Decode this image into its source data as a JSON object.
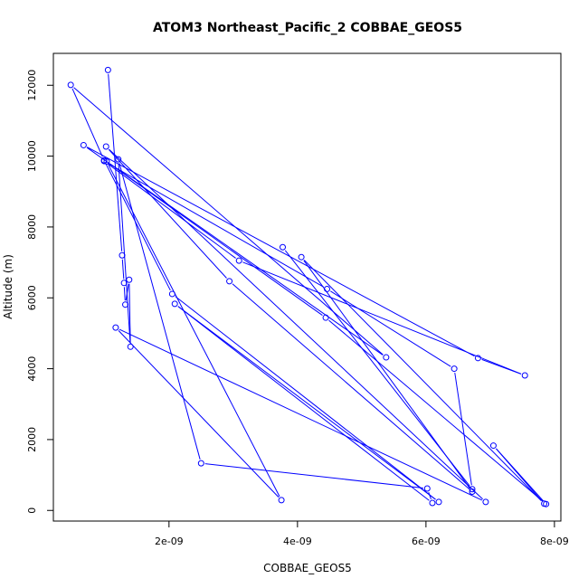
{
  "chart_data": {
    "type": "scatter",
    "title": "ATOM3 Northeast_Pacific_2 COBBAE_GEOS5",
    "xlabel": "COBBAE_GEOS5",
    "ylabel": "Altitude (m)",
    "xlim": [
      2e-10,
      8.1e-09
    ],
    "ylim": [
      -300,
      12900
    ],
    "x_ticks": [
      2e-09,
      4e-09,
      6e-09,
      8e-09
    ],
    "x_tick_labels": [
      "2e-09",
      "4e-09",
      "6e-09",
      "8e-09"
    ],
    "y_ticks": [
      0,
      2000,
      4000,
      6000,
      8000,
      10000,
      12000
    ],
    "y_tick_labels": [
      "0",
      "2000",
      "4000",
      "6000",
      "8000",
      "10000",
      "12000"
    ],
    "grid": false,
    "connected": true,
    "marker": "open-circle",
    "color": "#0000ff",
    "series": [
      {
        "points": [
          {
            "x": 1.05e-09,
            "y": 12430
          },
          {
            "x": 1.27e-09,
            "y": 7200
          },
          {
            "x": 1.3e-09,
            "y": 6420
          },
          {
            "x": 1.32e-09,
            "y": 5810
          },
          {
            "x": 1.38e-09,
            "y": 6510
          },
          {
            "x": 1.4e-09,
            "y": 4620
          },
          {
            "x": 1.21e-09,
            "y": 9910
          },
          {
            "x": 2.5e-09,
            "y": 1330
          },
          {
            "x": 6.02e-09,
            "y": 620
          },
          {
            "x": 6.1e-09,
            "y": 210
          },
          {
            "x": 2.09e-09,
            "y": 5830
          },
          {
            "x": 6.2e-09,
            "y": 240
          },
          {
            "x": 2.05e-09,
            "y": 6110
          },
          {
            "x": 9.9e-10,
            "y": 9880
          },
          {
            "x": 4.7e-10,
            "y": 12010
          },
          {
            "x": 5.38e-09,
            "y": 4320
          },
          {
            "x": 1.03e-09,
            "y": 9850
          },
          {
            "x": 3.75e-09,
            "y": 290
          },
          {
            "x": 1.17e-09,
            "y": 5160
          },
          {
            "x": 6.93e-09,
            "y": 240
          },
          {
            "x": 1.02e-09,
            "y": 10270
          },
          {
            "x": 2.94e-09,
            "y": 6470
          },
          {
            "x": 6.72e-09,
            "y": 530
          },
          {
            "x": 4.06e-09,
            "y": 7150
          },
          {
            "x": 7.84e-09,
            "y": 190
          },
          {
            "x": 7.05e-09,
            "y": 1830
          },
          {
            "x": 7.87e-09,
            "y": 180
          },
          {
            "x": 4.44e-09,
            "y": 5440
          },
          {
            "x": 6.7e-10,
            "y": 10310
          },
          {
            "x": 6.81e-09,
            "y": 4300
          },
          {
            "x": 7.54e-09,
            "y": 3810
          },
          {
            "x": 3.09e-09,
            "y": 7050
          },
          {
            "x": 9.9e-10,
            "y": 9860
          },
          {
            "x": 4.46e-09,
            "y": 6250
          },
          {
            "x": 6.44e-09,
            "y": 4000
          },
          {
            "x": 6.72e-09,
            "y": 600
          },
          {
            "x": 3.77e-09,
            "y": 7430
          }
        ]
      }
    ]
  }
}
